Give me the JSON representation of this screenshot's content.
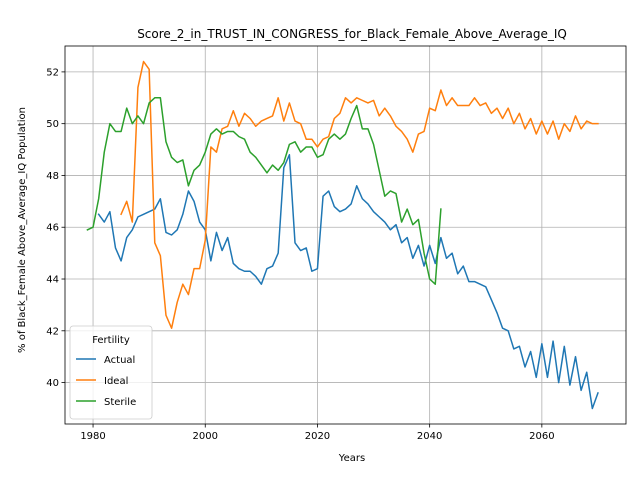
{
  "chart_data": {
    "type": "line",
    "title": "Score_2_in_TRUST_IN_CONGRESS_for_Black_Female_Above_Average_IQ",
    "xlabel": "Years",
    "ylabel": "% of Black_Female Above_Average_IQ Population",
    "xlim": [
      1975,
      2075
    ],
    "ylim": [
      38.4,
      53.0
    ],
    "xticks": [
      1980,
      2000,
      2020,
      2040,
      2060
    ],
    "yticks": [
      40,
      42,
      44,
      46,
      48,
      50,
      52
    ],
    "grid": true,
    "legend": {
      "title": "Fertility",
      "position": "bottom-left"
    },
    "series": [
      {
        "name": "Actual",
        "color": "#1f77b4",
        "x": [
          1981,
          1982,
          1983,
          1984,
          1985,
          1986,
          1987,
          1988,
          1989,
          1990,
          1991,
          1992,
          1993,
          1994,
          1995,
          1996,
          1997,
          1998,
          1999,
          2000,
          2001,
          2002,
          2003,
          2004,
          2005,
          2006,
          2007,
          2008,
          2009,
          2010,
          2011,
          2012,
          2013,
          2014,
          2015,
          2016,
          2017,
          2018,
          2019,
          2020,
          2021,
          2022,
          2023,
          2024,
          2025,
          2026,
          2027,
          2028,
          2029,
          2030,
          2031,
          2032,
          2033,
          2034,
          2035,
          2036,
          2037,
          2038,
          2039,
          2040,
          2041,
          2042,
          2043,
          2044,
          2045,
          2046,
          2047,
          2048,
          2049,
          2050,
          2051,
          2052,
          2053,
          2054,
          2055,
          2056,
          2057,
          2058,
          2059,
          2060,
          2061,
          2062,
          2063,
          2064,
          2065,
          2066,
          2067,
          2068,
          2069,
          2070
        ],
        "values": [
          46.5,
          46.2,
          46.6,
          45.2,
          44.7,
          45.6,
          45.9,
          46.4,
          46.5,
          46.6,
          46.7,
          47.1,
          45.8,
          45.7,
          45.9,
          46.5,
          47.4,
          47.0,
          46.2,
          45.9,
          44.7,
          45.8,
          45.1,
          45.6,
          44.6,
          44.4,
          44.3,
          44.3,
          44.1,
          43.8,
          44.4,
          44.5,
          45.0,
          48.3,
          48.8,
          45.4,
          45.1,
          45.2,
          44.3,
          44.4,
          47.2,
          47.4,
          46.8,
          46.6,
          46.7,
          46.9,
          47.6,
          47.1,
          46.9,
          46.6,
          46.4,
          46.2,
          45.9,
          46.1,
          45.4,
          45.6,
          44.8,
          45.3,
          44.5,
          45.3,
          44.6,
          45.6,
          44.8,
          45.0,
          44.2,
          44.5,
          43.9,
          43.9,
          43.8,
          43.7,
          43.2,
          42.7,
          42.1,
          42.0,
          41.3,
          41.4,
          40.6,
          41.2,
          40.2,
          41.5,
          40.2,
          41.6,
          40.0,
          41.4,
          39.9,
          41.0,
          39.7,
          40.4,
          39.0,
          39.6
        ]
      },
      {
        "name": "Ideal",
        "color": "#ff7f0e",
        "x": [
          1985,
          1986,
          1987,
          1988,
          1989,
          1990,
          1991,
          1992,
          1993,
          1994,
          1995,
          1996,
          1997,
          1998,
          1999,
          2000,
          2001,
          2002,
          2003,
          2004,
          2005,
          2006,
          2007,
          2008,
          2009,
          2010,
          2011,
          2012,
          2013,
          2014,
          2015,
          2016,
          2017,
          2018,
          2019,
          2020,
          2021,
          2022,
          2023,
          2024,
          2025,
          2026,
          2027,
          2028,
          2029,
          2030,
          2031,
          2032,
          2033,
          2034,
          2035,
          2036,
          2037,
          2038,
          2039,
          2040,
          2041,
          2042,
          2043,
          2044,
          2045,
          2046,
          2047,
          2048,
          2049,
          2050,
          2051,
          2052,
          2053,
          2054,
          2055,
          2056,
          2057,
          2058,
          2059,
          2060,
          2061,
          2062,
          2063,
          2064,
          2065,
          2066,
          2067,
          2068,
          2069,
          2070
        ],
        "values": [
          46.5,
          47.0,
          46.2,
          51.4,
          52.4,
          52.1,
          45.4,
          44.9,
          42.6,
          42.1,
          43.1,
          43.8,
          43.4,
          44.4,
          44.4,
          45.5,
          49.1,
          48.9,
          49.8,
          49.9,
          50.5,
          49.9,
          50.4,
          50.2,
          49.9,
          50.1,
          50.2,
          50.3,
          51.0,
          50.1,
          50.8,
          50.1,
          50.0,
          49.4,
          49.4,
          49.1,
          49.4,
          49.5,
          50.2,
          50.4,
          51.0,
          50.8,
          51.0,
          50.9,
          50.8,
          50.9,
          50.3,
          50.6,
          50.3,
          49.9,
          49.7,
          49.4,
          48.9,
          49.6,
          49.7,
          50.6,
          50.5,
          51.3,
          50.7,
          51.0,
          50.7,
          50.7,
          50.7,
          51.0,
          50.7,
          50.8,
          50.4,
          50.6,
          50.2,
          50.6,
          50.0,
          50.4,
          49.8,
          50.2,
          49.6,
          50.1,
          49.6,
          50.1,
          49.4,
          50.0,
          49.7,
          50.3,
          49.8,
          50.1,
          50.0,
          50.0
        ]
      },
      {
        "name": "Sterile",
        "color": "#2ca02c",
        "x": [
          1979,
          1980,
          1981,
          1982,
          1983,
          1984,
          1985,
          1986,
          1987,
          1988,
          1989,
          1990,
          1991,
          1992,
          1993,
          1994,
          1995,
          1996,
          1997,
          1998,
          1999,
          2000,
          2001,
          2002,
          2003,
          2004,
          2005,
          2006,
          2007,
          2008,
          2009,
          2010,
          2011,
          2012,
          2013,
          2014,
          2015,
          2016,
          2017,
          2018,
          2019,
          2020,
          2021,
          2022,
          2023,
          2024,
          2025,
          2026,
          2027,
          2028,
          2029,
          2030,
          2031,
          2032,
          2033,
          2034,
          2035,
          2036,
          2037,
          2038,
          2039,
          2040,
          2041,
          2042
        ],
        "values": [
          45.9,
          46.0,
          47.1,
          48.9,
          50.0,
          49.7,
          49.7,
          50.6,
          50.0,
          50.3,
          50.0,
          50.8,
          51.0,
          51.0,
          49.3,
          48.7,
          48.5,
          48.6,
          47.6,
          48.2,
          48.4,
          48.9,
          49.6,
          49.8,
          49.6,
          49.7,
          49.7,
          49.5,
          49.4,
          48.9,
          48.7,
          48.4,
          48.1,
          48.4,
          48.2,
          48.5,
          49.2,
          49.3,
          48.9,
          49.1,
          49.1,
          48.7,
          48.8,
          49.4,
          49.6,
          49.4,
          49.6,
          50.2,
          50.7,
          49.8,
          49.8,
          49.2,
          48.2,
          47.2,
          47.4,
          47.3,
          46.2,
          46.7,
          46.1,
          46.3,
          45.0,
          44.0,
          43.8,
          46.7
        ]
      }
    ]
  }
}
